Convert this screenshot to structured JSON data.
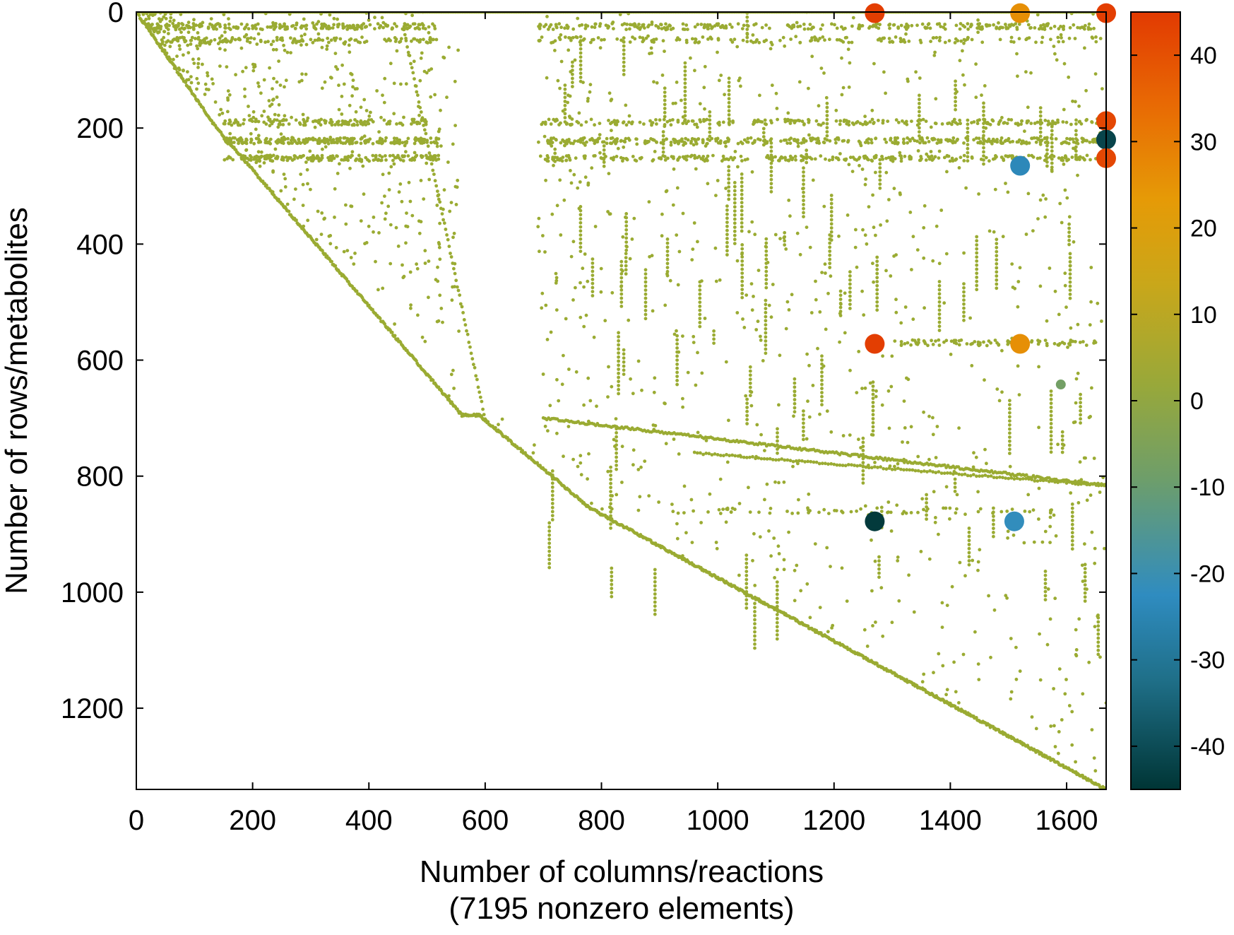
{
  "chart_data": {
    "type": "scatter",
    "title": "",
    "xlabel": "Number of columns/reactions",
    "xlabel_line2": "(7195 nonzero elements)",
    "ylabel": "Number of rows/metabolites",
    "xlim": [
      0,
      1668
    ],
    "ylim": [
      1340,
      0
    ],
    "x_ticks": [
      0,
      200,
      400,
      600,
      800,
      1000,
      1200,
      1400,
      1600
    ],
    "y_ticks": [
      0,
      200,
      400,
      600,
      800,
      1000,
      1200
    ],
    "y_inverted": true,
    "grid": false,
    "colorbar": {
      "range": [
        -45,
        45
      ],
      "ticks": [
        40,
        30,
        20,
        10,
        0,
        -10,
        -20,
        -30,
        -40
      ],
      "colors": [
        "#003535",
        "#1f6f88",
        "#2f8cc0",
        "#6e9e6a",
        "#98a83a",
        "#c9a71a",
        "#e69a06",
        "#e86a04",
        "#e23a02"
      ]
    },
    "highlighted_points": [
      {
        "x": 1270,
        "y": 2,
        "value": 44
      },
      {
        "x": 1520,
        "y": 2,
        "value": 25
      },
      {
        "x": 1668,
        "y": 2,
        "value": 44
      },
      {
        "x": 1668,
        "y": 188,
        "value": 42
      },
      {
        "x": 1668,
        "y": 220,
        "value": -42
      },
      {
        "x": 1668,
        "y": 252,
        "value": 42
      },
      {
        "x": 1520,
        "y": 265,
        "value": -24
      },
      {
        "x": 1270,
        "y": 572,
        "value": 44
      },
      {
        "x": 1520,
        "y": 572,
        "value": 25
      },
      {
        "x": 1590,
        "y": 642,
        "value": -10
      },
      {
        "x": 1270,
        "y": 878,
        "value": -44
      },
      {
        "x": 1510,
        "y": 878,
        "value": -22
      }
    ],
    "base_points_value": 4,
    "base_point_color": "#9aab32"
  }
}
